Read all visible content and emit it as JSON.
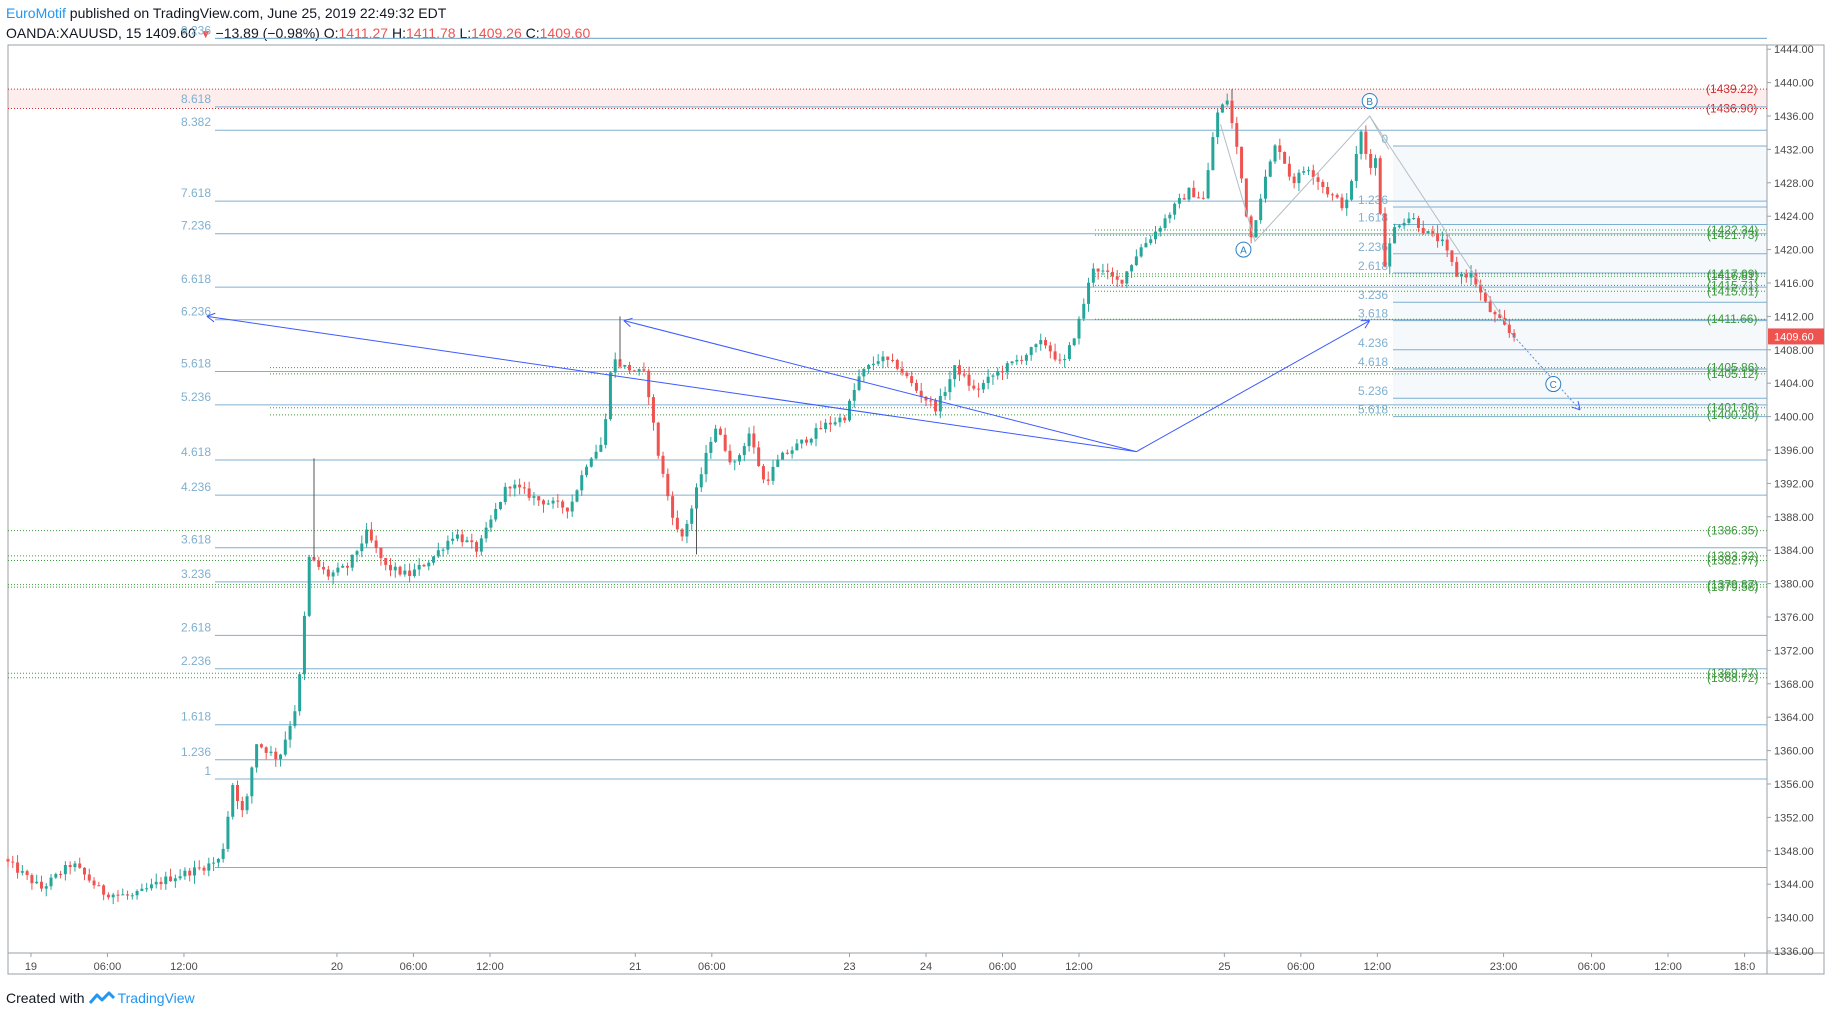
{
  "header": {
    "brand": "EuroMotif",
    "published": " published on TradingView.com, June 25, 2019 22:49:32 EDT",
    "symbol": "OANDA:XAUUSD, 15",
    "last": "1409.60",
    "change": "−13.89 (−0.98%)",
    "o_label": "O:",
    "o_val": "1411.27",
    "h_label": "H:",
    "h_val": "1411.78",
    "l_label": "L:",
    "l_val": "1409.26",
    "c_label": "C:",
    "c_val": "1409.60"
  },
  "footer": {
    "created": "Created with",
    "brand": "TradingView"
  },
  "colors": {
    "up": "#26a69a",
    "down": "#ef5350",
    "fib": "#7fb0d0",
    "green": "#3f9a3f",
    "red": "#d32f2f",
    "trend": "#3d5afe"
  },
  "chart_data": {
    "type": "candlestick",
    "ylim": [
      1336,
      1446
    ],
    "y_ticks": [
      "1444.00",
      "1440.00",
      "1436.00",
      "1432.00",
      "1428.00",
      "1424.00",
      "1420.00",
      "1416.00",
      "1412.00",
      "1408.00",
      "1404.00",
      "1400.00",
      "1396.00",
      "1392.00",
      "1388.00",
      "1384.00",
      "1380.00",
      "1376.00",
      "1372.00",
      "1368.00",
      "1364.00",
      "1360.00",
      "1356.00",
      "1352.00",
      "1348.00",
      "1344.00",
      "1340.00",
      "1336.00"
    ],
    "x_ticks": [
      {
        "label": "19",
        "t": 0.3
      },
      {
        "label": "06:00",
        "t": 1.3
      },
      {
        "label": "12:00",
        "t": 2.3
      },
      {
        "label": "20",
        "t": 4.3
      },
      {
        "label": "06:00",
        "t": 5.3
      },
      {
        "label": "12:00",
        "t": 6.3
      },
      {
        "label": "21",
        "t": 8.2
      },
      {
        "label": "06:00",
        "t": 9.2
      },
      {
        "label": "23",
        "t": 11.0
      },
      {
        "label": "24",
        "t": 12.0
      },
      {
        "label": "06:00",
        "t": 13.0
      },
      {
        "label": "12:00",
        "t": 14.0
      },
      {
        "label": "25",
        "t": 15.9
      },
      {
        "label": "06:00",
        "t": 16.9
      },
      {
        "label": "12:00",
        "t": 17.9
      },
      {
        "label": "23:00",
        "t": 19.55
      },
      {
        "label": "06:00",
        "t": 20.7
      },
      {
        "label": "12:00",
        "t": 21.7
      },
      {
        "label": "18:0",
        "t": 22.7
      }
    ],
    "price_path": [
      [
        0.0,
        1347.0
      ],
      [
        0.5,
        1343.5
      ],
      [
        0.9,
        1346.5
      ],
      [
        1.3,
        1343.0
      ],
      [
        1.7,
        1342.5
      ],
      [
        2.1,
        1344.5
      ],
      [
        2.6,
        1346.0
      ],
      [
        2.85,
        1347.0
      ],
      [
        3.0,
        1356.0
      ],
      [
        3.15,
        1352.0
      ],
      [
        3.3,
        1361.0
      ],
      [
        3.6,
        1359.0
      ],
      [
        3.85,
        1366.0
      ],
      [
        4.0,
        1383.0
      ],
      [
        4.25,
        1381.0
      ],
      [
        4.5,
        1382.0
      ],
      [
        4.75,
        1386.0
      ],
      [
        5.0,
        1382.0
      ],
      [
        5.3,
        1381.0
      ],
      [
        5.6,
        1383.0
      ],
      [
        5.9,
        1386.0
      ],
      [
        6.2,
        1384.0
      ],
      [
        6.6,
        1392.0
      ],
      [
        7.0,
        1390.0
      ],
      [
        7.4,
        1389.0
      ],
      [
        7.65,
        1395.0
      ],
      [
        7.85,
        1397.0
      ],
      [
        7.95,
        1407.0
      ],
      [
        8.1,
        1406.0
      ],
      [
        8.4,
        1405.0
      ],
      [
        8.55,
        1396.0
      ],
      [
        8.7,
        1390.0
      ],
      [
        8.85,
        1385.0
      ],
      [
        9.0,
        1389.0
      ],
      [
        9.3,
        1399.0
      ],
      [
        9.55,
        1394.0
      ],
      [
        9.75,
        1398.0
      ],
      [
        9.95,
        1392.0
      ],
      [
        10.15,
        1395.0
      ],
      [
        10.45,
        1397.0
      ],
      [
        10.75,
        1399.0
      ],
      [
        11.0,
        1400.0
      ],
      [
        11.2,
        1405.0
      ],
      [
        11.45,
        1407.0
      ],
      [
        11.7,
        1406.0
      ],
      [
        11.95,
        1403.0
      ],
      [
        12.2,
        1401.0
      ],
      [
        12.45,
        1406.0
      ],
      [
        12.7,
        1403.0
      ],
      [
        12.95,
        1405.0
      ],
      [
        13.3,
        1407.0
      ],
      [
        13.6,
        1409.0
      ],
      [
        13.85,
        1406.0
      ],
      [
        14.05,
        1411.0
      ],
      [
        14.25,
        1418.0
      ],
      [
        14.6,
        1416.0
      ],
      [
        14.85,
        1420.0
      ],
      [
        15.05,
        1422.0
      ],
      [
        15.3,
        1425.0
      ],
      [
        15.5,
        1427.0
      ],
      [
        15.7,
        1426.0
      ],
      [
        15.85,
        1436.0
      ],
      [
        16.0,
        1438.0
      ],
      [
        16.15,
        1431.0
      ],
      [
        16.3,
        1421.0
      ],
      [
        16.45,
        1427.0
      ],
      [
        16.65,
        1433.0
      ],
      [
        16.85,
        1428.0
      ],
      [
        17.05,
        1430.0
      ],
      [
        17.3,
        1427.0
      ],
      [
        17.55,
        1425.0
      ],
      [
        17.75,
        1434.0
      ],
      [
        17.85,
        1430.0
      ],
      [
        17.95,
        1431.0
      ],
      [
        18.05,
        1418.0
      ],
      [
        18.2,
        1423.0
      ],
      [
        18.4,
        1424.0
      ],
      [
        18.6,
        1422.0
      ],
      [
        18.8,
        1421.0
      ],
      [
        19.0,
        1417.0
      ],
      [
        19.2,
        1417.0
      ],
      [
        19.4,
        1413.0
      ],
      [
        19.6,
        1411.0
      ],
      [
        19.72,
        1409.6
      ]
    ],
    "fib_levels_left": [
      {
        "label": "9.236",
        "price": 1445.3
      },
      {
        "label": "8.618",
        "price": 1437.1
      },
      {
        "label": "8.382",
        "price": 1434.3
      },
      {
        "label": "7.618",
        "price": 1425.8
      },
      {
        "label": "7.236",
        "price": 1421.9
      },
      {
        "label": "6.618",
        "price": 1415.5
      },
      {
        "label": "6.236",
        "price": 1411.6
      },
      {
        "label": "5.618",
        "price": 1405.4
      },
      {
        "label": "5.236",
        "price": 1401.4
      },
      {
        "label": "4.618",
        "price": 1394.8
      },
      {
        "label": "4.236",
        "price": 1390.6
      },
      {
        "label": "3.618",
        "price": 1384.3
      },
      {
        "label": "3.236",
        "price": 1380.2
      },
      {
        "label": "2.618",
        "price": 1373.8
      },
      {
        "label": "2.236",
        "price": 1369.8
      },
      {
        "label": "1.618",
        "price": 1363.1
      },
      {
        "label": "1.236",
        "price": 1358.9
      },
      {
        "label": "1",
        "price": 1356.6
      },
      {
        "label": "",
        "price": 1346.0
      }
    ],
    "fib_levels_right": [
      {
        "label": "0",
        "price": 1432.4
      },
      {
        "label": "1.236",
        "price": 1425.1
      },
      {
        "label": "1.618",
        "price": 1423.0
      },
      {
        "label": "2.236",
        "price": 1419.5
      },
      {
        "label": "2.618",
        "price": 1417.2
      },
      {
        "label": "3.236",
        "price": 1413.7
      },
      {
        "label": "3.618",
        "price": 1411.5
      },
      {
        "label": "4.236",
        "price": 1408.0
      },
      {
        "label": "4.618",
        "price": 1405.7
      },
      {
        "label": "5.236",
        "price": 1402.2
      },
      {
        "label": "5.618",
        "price": 1400.0
      }
    ],
    "green_levels": [
      {
        "label": "(1422.34)",
        "price": 1422.34
      },
      {
        "label": "(1421.73)",
        "price": 1421.73
      },
      {
        "label": "(1417.09)",
        "price": 1417.09
      },
      {
        "label": "(1416.81)",
        "price": 1416.81
      },
      {
        "label": "(1415.71)",
        "price": 1415.71
      },
      {
        "label": "(1415.01)",
        "price": 1415.01
      },
      {
        "label": "(1411.66)",
        "price": 1411.66
      },
      {
        "label": "(1405.86)",
        "price": 1405.86
      },
      {
        "label": "(1405.12)",
        "price": 1405.12
      },
      {
        "label": "(1401.06)",
        "price": 1401.06
      },
      {
        "label": "(1400.20)",
        "price": 1400.2
      },
      {
        "label": "(1386.35)",
        "price": 1386.35
      },
      {
        "label": "(1383.32)",
        "price": 1383.32
      },
      {
        "label": "(1382.77)",
        "price": 1382.77
      },
      {
        "label": "(1379.87)",
        "price": 1379.87
      },
      {
        "label": "(1379.58)",
        "price": 1379.58
      },
      {
        "label": "(1369.27)",
        "price": 1369.27
      },
      {
        "label": "(1368.72)",
        "price": 1368.72
      }
    ],
    "red_levels": [
      {
        "label": "(1439.22)",
        "price": 1439.22
      },
      {
        "label": "(1436.90)",
        "price": 1436.9
      }
    ],
    "wave_labels": [
      {
        "label": "A",
        "t": 16.15,
        "price": 1420.0
      },
      {
        "label": "B",
        "t": 17.8,
        "price": 1437.8
      },
      {
        "label": "C",
        "t": 20.2,
        "price": 1403.9
      }
    ],
    "trend_lines": [
      {
        "from": [
          2.6,
          1412.0
        ],
        "to": [
          14.75,
          1395.8
        ]
      },
      {
        "from": [
          8.05,
          1411.5
        ],
        "to": [
          14.75,
          1395.8
        ]
      },
      {
        "from": [
          14.75,
          1395.8
        ],
        "to": [
          17.8,
          1411.5
        ]
      }
    ]
  }
}
